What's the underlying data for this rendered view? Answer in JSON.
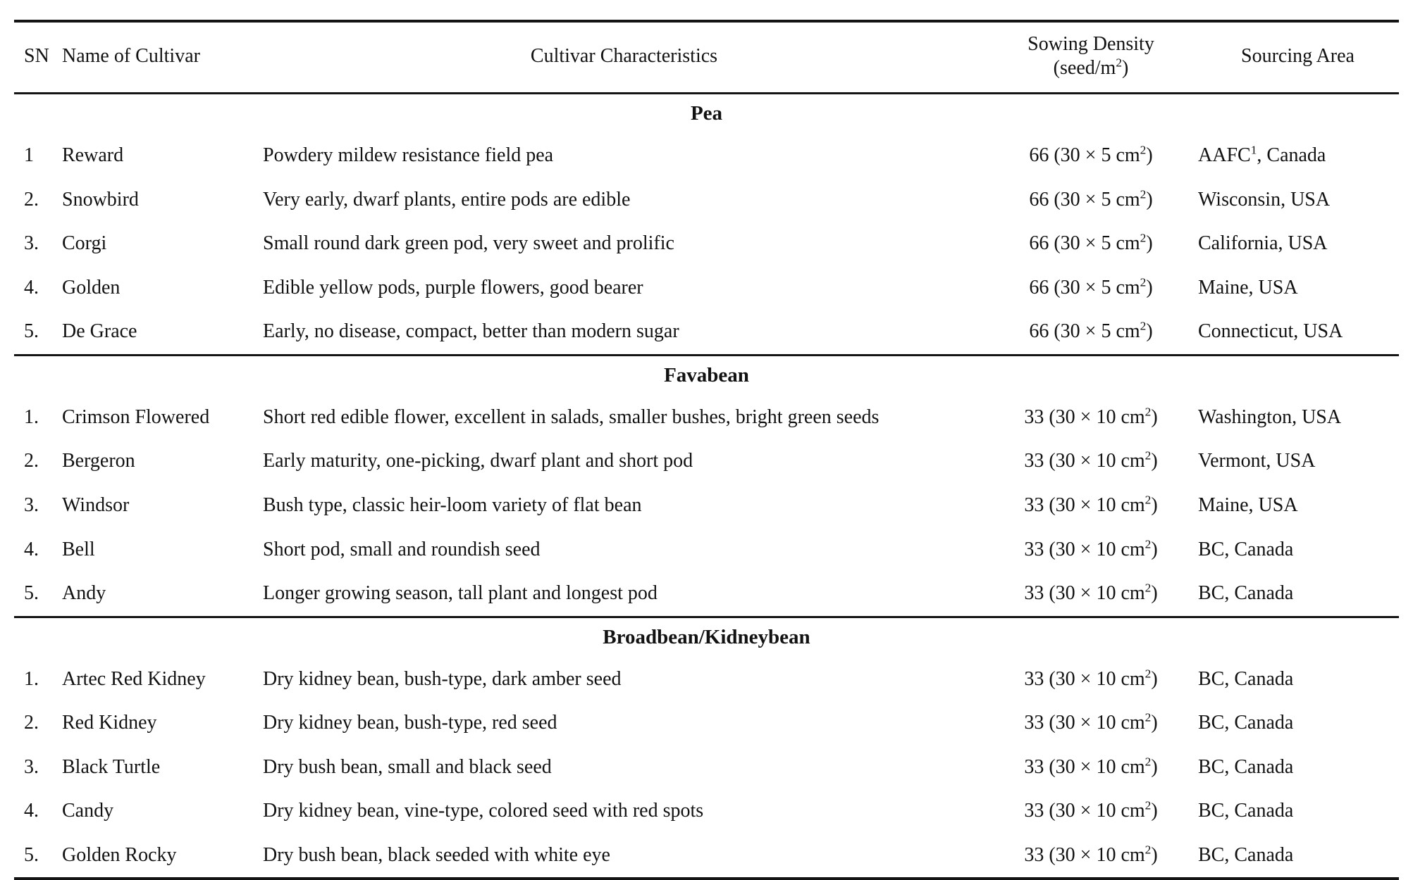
{
  "header": {
    "sn": "SN",
    "name": "Name of Cultivar",
    "characteristics": "Cultivar Characteristics",
    "density_line1": "Sowing Density",
    "density_line2": "(seed/m²)",
    "sourcing": "Sourcing Area"
  },
  "sections": [
    {
      "title": "Pea",
      "rows": [
        {
          "sn": "1",
          "name": "Reward",
          "characteristics": "Powdery mildew resistance field pea",
          "density": "66 (30 × 5 cm²)",
          "sourcing": "AAFC¹, Canada"
        },
        {
          "sn": "2.",
          "name": "Snowbird",
          "characteristics": "Very early, dwarf plants, entire pods are edible",
          "density": "66 (30 × 5 cm²)",
          "sourcing": "Wisconsin, USA"
        },
        {
          "sn": "3.",
          "name": "Corgi",
          "characteristics": "Small round dark green pod, very sweet and prolific",
          "density": "66 (30 × 5 cm²)",
          "sourcing": "California, USA"
        },
        {
          "sn": "4.",
          "name": "Golden",
          "characteristics": "Edible yellow pods, purple flowers, good bearer",
          "density": "66 (30 × 5 cm²)",
          "sourcing": "Maine, USA"
        },
        {
          "sn": "5.",
          "name": "De Grace",
          "characteristics": "Early, no disease, compact, better than modern sugar",
          "density": "66 (30 × 5 cm²)",
          "sourcing": "Connecticut, USA"
        }
      ]
    },
    {
      "title": "Favabean",
      "rows": [
        {
          "sn": "1.",
          "name": "Crimson Flowered",
          "characteristics": "Short red edible flower, excellent in salads, smaller bushes, bright green seeds",
          "density": "33 (30 × 10 cm²)",
          "sourcing": "Washington, USA"
        },
        {
          "sn": "2.",
          "name": "Bergeron",
          "characteristics": "Early maturity, one-picking, dwarf plant and short pod",
          "density": "33 (30 × 10 cm²)",
          "sourcing": "Vermont, USA"
        },
        {
          "sn": "3.",
          "name": "Windsor",
          "characteristics": "Bush type, classic heir-loom variety of flat bean",
          "density": "33 (30 × 10 cm²)",
          "sourcing": "Maine, USA"
        },
        {
          "sn": "4.",
          "name": "Bell",
          "characteristics": "Short pod, small and roundish seed",
          "density": "33 (30 × 10 cm²)",
          "sourcing": "BC, Canada"
        },
        {
          "sn": "5.",
          "name": "Andy",
          "characteristics": "Longer growing season, tall plant and longest pod",
          "density": "33 (30 × 10 cm²)",
          "sourcing": "BC, Canada"
        }
      ]
    },
    {
      "title": "Broadbean/Kidneybean",
      "rows": [
        {
          "sn": "1.",
          "name": "Artec Red Kidney",
          "characteristics": "Dry kidney bean, bush-type, dark amber seed",
          "density": "33 (30 × 10 cm²)",
          "sourcing": "BC, Canada"
        },
        {
          "sn": "2.",
          "name": "Red Kidney",
          "characteristics": "Dry kidney bean, bush-type, red seed",
          "density": "33 (30 × 10 cm²)",
          "sourcing": "BC, Canada"
        },
        {
          "sn": "3.",
          "name": "Black Turtle",
          "characteristics": "Dry bush bean, small and black seed",
          "density": "33 (30 × 10 cm²)",
          "sourcing": "BC, Canada"
        },
        {
          "sn": "4.",
          "name": "Candy",
          "characteristics": "Dry kidney bean, vine-type, colored seed with red spots",
          "density": "33 (30 × 10 cm²)",
          "sourcing": "BC, Canada"
        },
        {
          "sn": "5.",
          "name": "Golden Rocky",
          "characteristics": "Dry bush bean, black seeded with white eye",
          "density": "33 (30 × 10 cm²)",
          "sourcing": "BC, Canada"
        }
      ]
    }
  ]
}
